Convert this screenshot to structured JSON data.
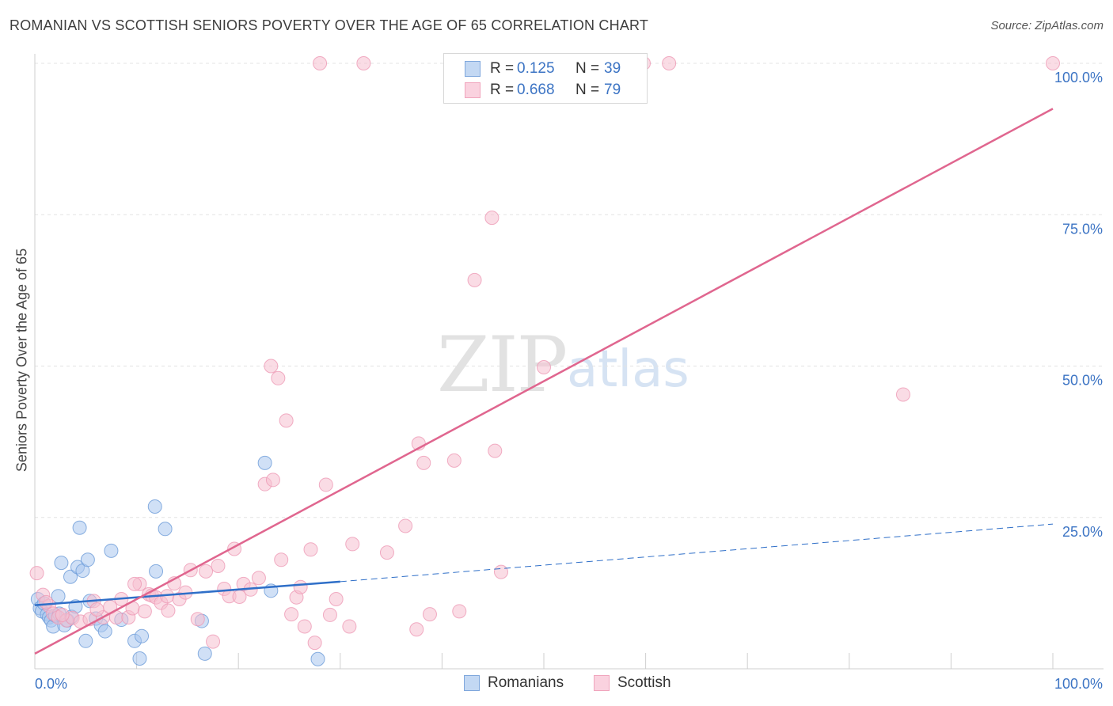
{
  "header": {
    "title": "ROMANIAN VS SCOTTISH SENIORS POVERTY OVER THE AGE OF 65 CORRELATION CHART",
    "source": "Source: ZipAtlas.com"
  },
  "watermark": {
    "zip": "ZIP",
    "atlas": "atlas"
  },
  "colors": {
    "romanians_fill": "#a9c7ef",
    "romanians_stroke": "#6b9bd8",
    "romanians_line": "#2f6fc8",
    "scottish_fill": "#f6bfd0",
    "scottish_stroke": "#ee9ab5",
    "scottish_line": "#e0668f",
    "axis_text": "#3c74c4",
    "grid": "#e3e3e3"
  },
  "legend": {
    "rows": [
      {
        "r_label": "R =",
        "r_value": "0.125",
        "n_label": "N =",
        "n_value": "39"
      },
      {
        "r_label": "R =",
        "r_value": "0.668",
        "n_label": "N =",
        "n_value": "79"
      }
    ],
    "series_names": [
      "Romanians",
      "Scottish"
    ]
  },
  "chart_data": {
    "type": "scatter",
    "title": "ROMANIAN VS SCOTTISH SENIORS POVERTY OVER THE AGE OF 65 CORRELATION CHART",
    "xlabel": "",
    "ylabel": "Seniors Poverty Over the Age of 65",
    "xlim": [
      0,
      100
    ],
    "ylim": [
      0,
      100
    ],
    "x_tick_labels": [
      "0.0%",
      "100.0%"
    ],
    "y_ticks": [
      25,
      50,
      75,
      100
    ],
    "y_tick_labels": [
      "25.0%",
      "50.0%",
      "75.0%",
      "100.0%"
    ],
    "grid": true,
    "legend_position": "top-center",
    "series": [
      {
        "name": "Romanians",
        "r": 0.125,
        "n": 39,
        "points": [
          [
            0.3,
            11.5
          ],
          [
            0.5,
            10.0
          ],
          [
            0.7,
            9.5
          ],
          [
            0.9,
            10.8
          ],
          [
            1.2,
            9.0
          ],
          [
            1.4,
            8.5
          ],
          [
            1.6,
            8.0
          ],
          [
            1.8,
            7.0
          ],
          [
            2.0,
            8.8
          ],
          [
            2.3,
            12.0
          ],
          [
            2.6,
            17.5
          ],
          [
            2.9,
            7.2
          ],
          [
            3.2,
            8.0
          ],
          [
            3.5,
            15.2
          ],
          [
            3.6,
            8.6
          ],
          [
            4.0,
            10.3
          ],
          [
            4.2,
            16.8
          ],
          [
            4.4,
            23.3
          ],
          [
            4.7,
            16.2
          ],
          [
            5.0,
            4.6
          ],
          [
            5.2,
            18.0
          ],
          [
            5.4,
            11.2
          ],
          [
            6.0,
            8.3
          ],
          [
            6.5,
            7.2
          ],
          [
            7.5,
            19.5
          ],
          [
            8.5,
            8.1
          ],
          [
            9.8,
            4.6
          ],
          [
            10.3,
            1.7
          ],
          [
            10.5,
            5.4
          ],
          [
            11.8,
            26.8
          ],
          [
            11.9,
            16.1
          ],
          [
            12.8,
            23.1
          ],
          [
            16.4,
            7.9
          ],
          [
            16.7,
            2.5
          ],
          [
            22.6,
            34.0
          ],
          [
            23.2,
            12.9
          ],
          [
            27.8,
            1.6
          ],
          [
            6.9,
            6.2
          ],
          [
            2.4,
            9.1
          ]
        ],
        "trend": {
          "x_start": 0.0,
          "y_start": 10.5,
          "x_solid_end": 30.0,
          "y_solid_end": 14.4,
          "x_end": 100.0,
          "y_end": 23.9
        }
      },
      {
        "name": "Scottish",
        "r": 0.668,
        "n": 79,
        "points": [
          [
            0.2,
            15.8
          ],
          [
            0.8,
            12.2
          ],
          [
            1.4,
            10.4
          ],
          [
            1.8,
            9.1
          ],
          [
            2.3,
            8.5
          ],
          [
            3.1,
            8.0
          ],
          [
            3.7,
            8.4
          ],
          [
            4.5,
            7.8
          ],
          [
            5.4,
            8.2
          ],
          [
            5.8,
            11.2
          ],
          [
            6.7,
            8.5
          ],
          [
            7.4,
            10.2
          ],
          [
            8.0,
            8.5
          ],
          [
            8.5,
            11.5
          ],
          [
            9.2,
            8.5
          ],
          [
            9.6,
            10.0
          ],
          [
            10.3,
            14.0
          ],
          [
            10.8,
            9.5
          ],
          [
            11.2,
            12.3
          ],
          [
            11.5,
            12.1
          ],
          [
            11.9,
            11.8
          ],
          [
            12.4,
            10.9
          ],
          [
            13.0,
            12.0
          ],
          [
            13.7,
            14.1
          ],
          [
            14.2,
            11.5
          ],
          [
            14.8,
            12.6
          ],
          [
            15.3,
            16.3
          ],
          [
            16.0,
            8.2
          ],
          [
            16.8,
            16.1
          ],
          [
            17.5,
            4.5
          ],
          [
            18.0,
            17.0
          ],
          [
            18.6,
            13.2
          ],
          [
            19.1,
            12.0
          ],
          [
            19.6,
            19.8
          ],
          [
            20.1,
            11.9
          ],
          [
            20.5,
            14.0
          ],
          [
            21.2,
            13.1
          ],
          [
            22.0,
            15.0
          ],
          [
            22.6,
            30.5
          ],
          [
            23.4,
            31.2
          ],
          [
            23.9,
            48.0
          ],
          [
            24.2,
            18.0
          ],
          [
            24.7,
            41.0
          ],
          [
            25.2,
            9.0
          ],
          [
            25.7,
            11.8
          ],
          [
            26.1,
            13.5
          ],
          [
            26.5,
            7.0
          ],
          [
            27.1,
            19.7
          ],
          [
            27.5,
            4.3
          ],
          [
            28.0,
            100.0
          ],
          [
            28.6,
            30.4
          ],
          [
            29.0,
            8.9
          ],
          [
            29.6,
            11.5
          ],
          [
            30.9,
            7.0
          ],
          [
            31.2,
            20.6
          ],
          [
            32.3,
            100.0
          ],
          [
            34.6,
            19.2
          ],
          [
            36.4,
            23.6
          ],
          [
            37.5,
            6.5
          ],
          [
            37.7,
            37.2
          ],
          [
            38.2,
            34.0
          ],
          [
            38.8,
            9.0
          ],
          [
            41.2,
            34.4
          ],
          [
            41.7,
            9.5
          ],
          [
            43.2,
            64.2
          ],
          [
            44.9,
            74.5
          ],
          [
            45.2,
            36.0
          ],
          [
            45.8,
            16.0
          ],
          [
            50.0,
            49.8
          ],
          [
            59.8,
            100.0
          ],
          [
            62.3,
            100.0
          ],
          [
            85.3,
            45.3
          ],
          [
            100.0,
            100.0
          ],
          [
            13.1,
            9.6
          ],
          [
            23.2,
            50.0
          ],
          [
            9.8,
            14.0
          ],
          [
            6.1,
            9.8
          ],
          [
            1.1,
            11.0
          ],
          [
            2.7,
            8.9
          ]
        ],
        "trend": {
          "x_start": 0.0,
          "y_start": 2.5,
          "x_end": 100.0,
          "y_end": 92.5
        }
      }
    ]
  }
}
